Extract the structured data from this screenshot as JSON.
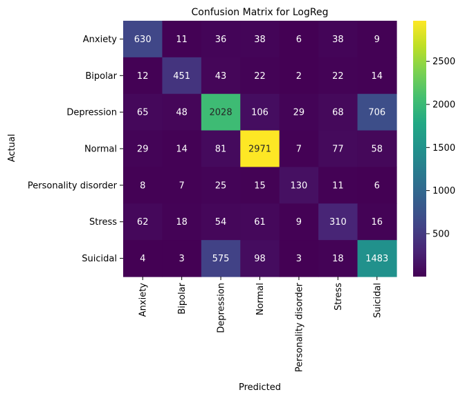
{
  "chart_data": {
    "type": "heatmap",
    "title": "Confusion Matrix for LogReg",
    "xlabel": "Predicted",
    "ylabel": "Actual",
    "x_categories": [
      "Anxiety",
      "Bipolar",
      "Depression",
      "Normal",
      "Personality disorder",
      "Stress",
      "Suicidal"
    ],
    "y_categories": [
      "Anxiety",
      "Bipolar",
      "Depression",
      "Normal",
      "Personality disorder",
      "Stress",
      "Suicidal"
    ],
    "values": [
      [
        630,
        11,
        36,
        38,
        6,
        38,
        9
      ],
      [
        12,
        451,
        43,
        22,
        2,
        22,
        14
      ],
      [
        65,
        48,
        2028,
        106,
        29,
        68,
        706
      ],
      [
        29,
        14,
        81,
        2971,
        7,
        77,
        58
      ],
      [
        8,
        7,
        25,
        15,
        130,
        11,
        6
      ],
      [
        62,
        18,
        54,
        61,
        9,
        310,
        16
      ],
      [
        4,
        3,
        575,
        98,
        3,
        18,
        1483
      ]
    ],
    "colormap": "viridis",
    "color_range": [
      2,
      2971
    ],
    "colorbar_ticks": [
      "500",
      "1000",
      "1500",
      "2000",
      "2500"
    ],
    "colorbar_tick_values": [
      500,
      1000,
      1500,
      2000,
      2500
    ],
    "colors": {
      "low_text": "#ffffff",
      "high_text": "#262626"
    }
  }
}
